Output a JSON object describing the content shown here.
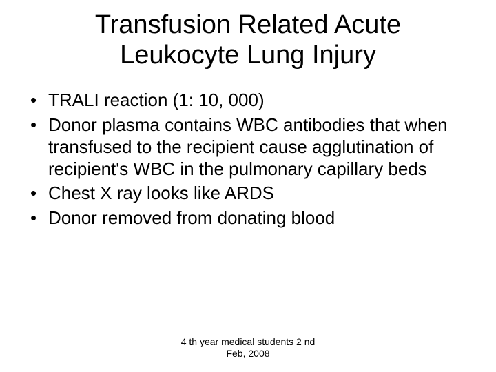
{
  "slide": {
    "title_line1": "Transfusion Related Acute",
    "title_line2": "Leukocyte Lung Injury",
    "bullets": [
      "TRALI reaction (1: 10, 000)",
      "Donor plasma contains WBC antibodies that when transfused to the recipient cause agglutination of recipient's WBC in the pulmonary capillary beds",
      "Chest X ray looks like ARDS",
      "Donor removed from donating blood"
    ],
    "footer_line1": "4 th year medical students 2 nd",
    "footer_line2": "Feb, 2008"
  },
  "style": {
    "background_color": "#ffffff",
    "text_color": "#000000",
    "title_fontsize": 38,
    "body_fontsize": 26,
    "footer_fontsize": 14,
    "font_family": "Arial"
  }
}
